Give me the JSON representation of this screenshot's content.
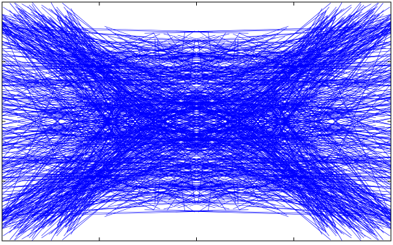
{
  "chart_data": {
    "type": "line",
    "title": "",
    "xlabel": "",
    "ylabel": "",
    "grid": false,
    "legend": "none",
    "x_ticks_visible": 3,
    "y_ticks_visible": 3,
    "tick_labels_shown": false,
    "pattern": "symmetric-dense-fan",
    "series": [
      {
        "color": "#0000ff",
        "line_count_estimate": 1600
      }
    ]
  }
}
